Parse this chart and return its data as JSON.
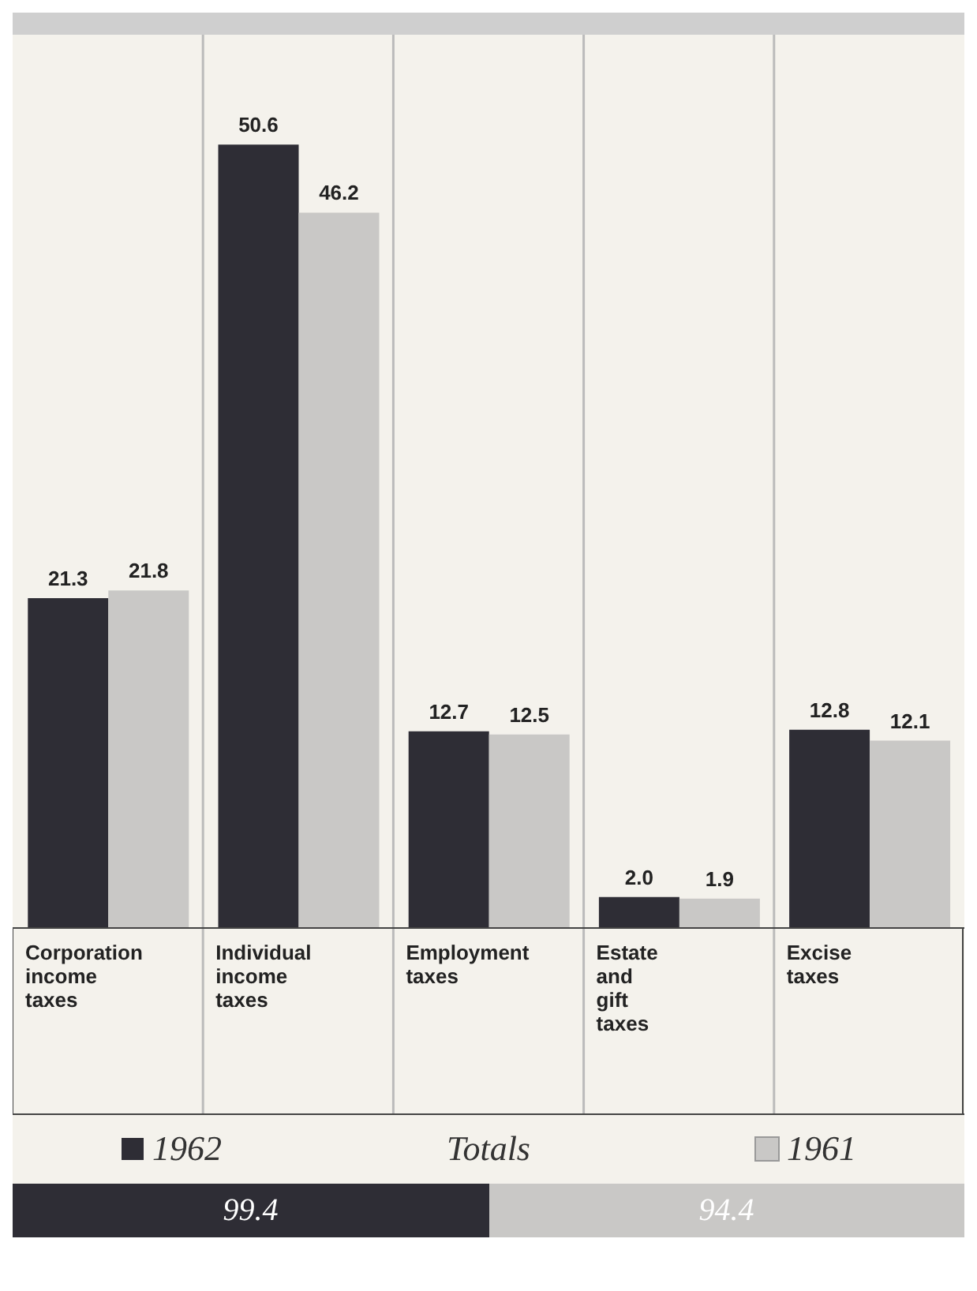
{
  "chart_data": {
    "type": "bar",
    "categories": [
      "Corporation income taxes",
      "Individual income taxes",
      "Employment taxes",
      "Estate and gift taxes",
      "Excise taxes"
    ],
    "series": [
      {
        "name": "1962",
        "color": "#2e2d35",
        "values": [
          21.3,
          50.6,
          12.7,
          2.0,
          12.8
        ],
        "value_labels": [
          "21.3",
          "50.6",
          "12.7",
          "2.0",
          "12.8"
        ]
      },
      {
        "name": "1961",
        "color": "#c9c8c6",
        "values": [
          21.8,
          46.2,
          12.5,
          1.9,
          12.1
        ],
        "value_labels": [
          "21.8",
          "46.2",
          "12.5",
          "1.9",
          "12.1"
        ]
      }
    ],
    "legend": "bottom",
    "annotations": [
      "Totals",
      "99.4",
      "94.4"
    ]
  }
}
